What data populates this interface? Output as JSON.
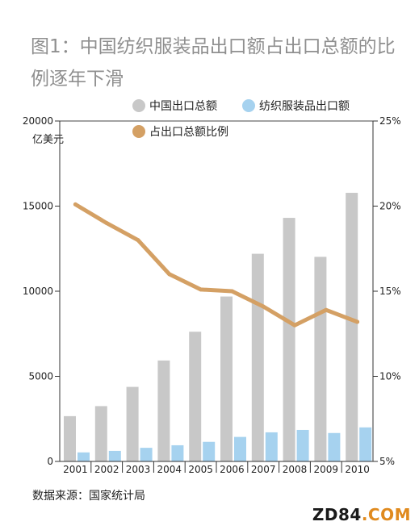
{
  "title": "图1：中国纺织服装品出口额占出口总额的比例逐年下滑",
  "source": "数据来源：国家统计局",
  "watermark": {
    "part1": "ZD84",
    "part2": ".COM"
  },
  "colors": {
    "total": "#c8c8c8",
    "textile": "#a6d2ef",
    "ratio": "#d4a064",
    "axis": "#333333"
  },
  "chart_data": {
    "type": "bar",
    "categories": [
      "2001",
      "2002",
      "2003",
      "2004",
      "2005",
      "2006",
      "2007",
      "2008",
      "2009",
      "2010"
    ],
    "series": [
      {
        "name": "中国出口总额",
        "axis": "left",
        "type": "bar",
        "values": [
          2660,
          3250,
          4380,
          5930,
          7620,
          9690,
          12200,
          14310,
          12020,
          15780
        ]
      },
      {
        "name": "纺织服装品出口额",
        "axis": "left",
        "type": "bar",
        "values": [
          530,
          620,
          800,
          950,
          1150,
          1440,
          1710,
          1850,
          1670,
          2000
        ]
      },
      {
        "name": "占出口总额比例",
        "axis": "right",
        "type": "line",
        "unit": "%",
        "values": [
          20.1,
          19.0,
          18.0,
          16.0,
          15.1,
          15.0,
          14.1,
          13.0,
          13.9,
          13.2
        ]
      }
    ],
    "left_axis": {
      "label": "亿美元",
      "ylim": [
        0,
        20000
      ],
      "ticks": [
        "0",
        "5000",
        "10000",
        "15000",
        "20000"
      ]
    },
    "right_axis": {
      "ylim": [
        5,
        25
      ],
      "ticks": [
        "5%",
        "10%",
        "15%",
        "20%",
        "25%"
      ]
    },
    "legend_position": "top"
  }
}
